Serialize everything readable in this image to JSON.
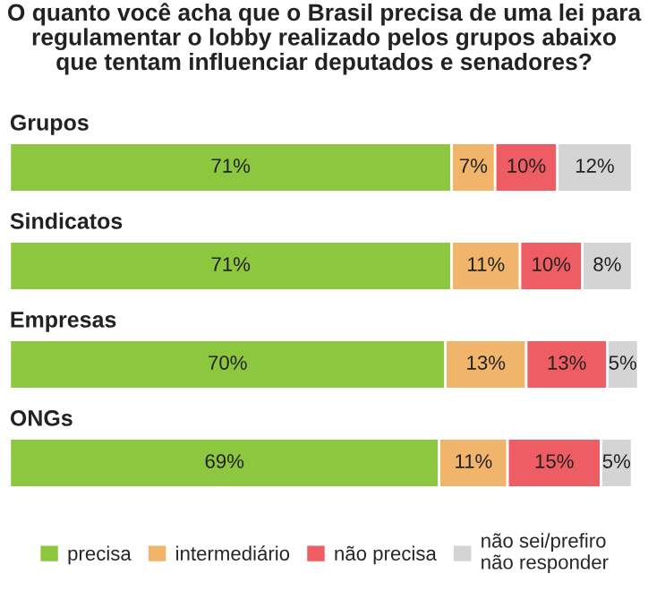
{
  "chart_data": {
    "type": "bar",
    "orientation": "horizontal",
    "stacked": true,
    "title": "O quanto você acha que o Brasil precisa de uma lei para\nregulamentar o lobby realizado pelos grupos abaixo\nque tentam influenciar deputados e senadores?",
    "categories": [
      "Grupos",
      "Sindicatos",
      "Empresas",
      "ONGs"
    ],
    "series": [
      {
        "name": "precisa",
        "color": "#8dc63f",
        "values": [
          71,
          71,
          70,
          69
        ],
        "value_labels": [
          "71%",
          "71%",
          "70%",
          "69%"
        ]
      },
      {
        "name": "intermediário",
        "color": "#f0b46a",
        "values": [
          7,
          11,
          13,
          11
        ],
        "value_labels": [
          "7%",
          "11%",
          "13%",
          "11%"
        ]
      },
      {
        "name": "não precisa",
        "color": "#ee5d63",
        "values": [
          10,
          10,
          13,
          15
        ],
        "value_labels": [
          "10%",
          "10%",
          "13%",
          "15%"
        ]
      },
      {
        "name": "não sei/prefiro\nnão responder",
        "color": "#d4d4d4",
        "values": [
          12,
          8,
          5,
          5
        ],
        "value_labels": [
          "12%",
          "8%",
          "5%",
          "5%"
        ]
      }
    ],
    "xlim": [
      0,
      101
    ],
    "tick_labels": false,
    "legend": "bottom"
  }
}
